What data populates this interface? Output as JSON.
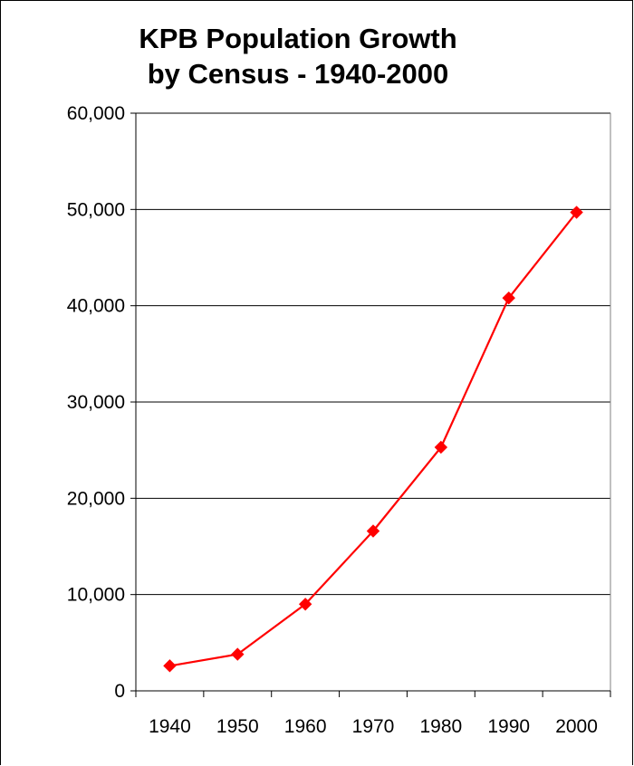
{
  "chart_data": {
    "type": "line",
    "title_lines": [
      "KPB Population Growth",
      "by Census - 1940-2000"
    ],
    "xlabel": "",
    "ylabel": "",
    "categories": [
      "1940",
      "1950",
      "1960",
      "1970",
      "1980",
      "1990",
      "2000"
    ],
    "series": [
      {
        "values": [
          2600,
          3800,
          9000,
          16600,
          25300,
          40800,
          49700
        ],
        "color": "#ff0000",
        "marker": "diamond"
      }
    ],
    "ylim": [
      0,
      60000
    ],
    "yticks": [
      0,
      10000,
      20000,
      30000,
      40000,
      50000,
      60000
    ],
    "ytick_labels": [
      "0",
      "10,000",
      "20,000",
      "30,000",
      "40,000",
      "50,000",
      "60,000"
    ],
    "grid": "horizontal",
    "legend": "none"
  }
}
